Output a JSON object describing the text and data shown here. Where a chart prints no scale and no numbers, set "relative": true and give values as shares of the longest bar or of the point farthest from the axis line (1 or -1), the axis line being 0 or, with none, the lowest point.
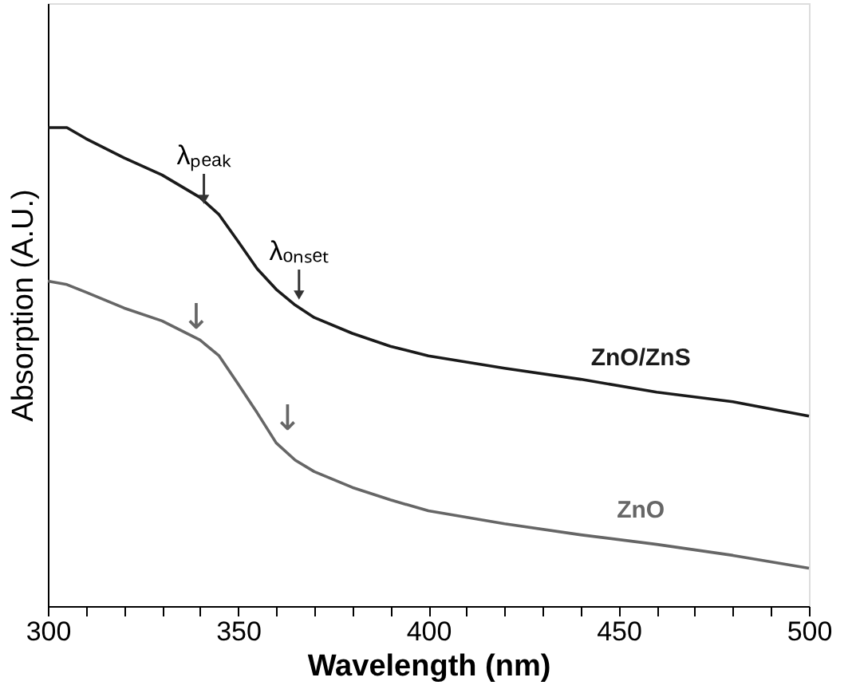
{
  "chart_data": {
    "type": "line",
    "relative": true,
    "xlabel": "Wavelength (nm)",
    "ylabel": "Absorption (A.U.)",
    "x": [
      300,
      305,
      310,
      320,
      330,
      340,
      345,
      350,
      355,
      360,
      365,
      370,
      380,
      390,
      400,
      420,
      440,
      460,
      480,
      500
    ],
    "xlim": [
      300,
      500
    ],
    "xticks": [
      300,
      {
        "value": 310,
        "label": null
      },
      {
        "value": 320,
        "label": null
      },
      {
        "value": 330,
        "label": null
      },
      {
        "value": 340,
        "label": null
      },
      350,
      {
        "value": 360,
        "label": null
      },
      {
        "value": 370,
        "label": null
      },
      {
        "value": 380,
        "label": null
      },
      {
        "value": 390,
        "label": null
      },
      400,
      {
        "value": 410,
        "label": null
      },
      {
        "value": 420,
        "label": null
      },
      {
        "value": 430,
        "label": null
      },
      {
        "value": 440,
        "label": null
      },
      450,
      {
        "value": 460,
        "label": null
      },
      {
        "value": 470,
        "label": null
      },
      {
        "value": 480,
        "label": null
      },
      {
        "value": 490,
        "label": null
      },
      500
    ],
    "series": [
      {
        "name": "ZnO/ZnS",
        "color": "#1a1a1a",
        "values": [
          1.0,
          1.0,
          0.977,
          0.937,
          0.901,
          0.854,
          0.818,
          0.762,
          0.705,
          0.662,
          0.629,
          0.603,
          0.57,
          0.543,
          0.523,
          0.497,
          0.474,
          0.447,
          0.427,
          0.397
        ]
      },
      {
        "name": "ZnO",
        "color": "#666666",
        "values": [
          0.679,
          0.672,
          0.656,
          0.623,
          0.596,
          0.556,
          0.523,
          0.464,
          0.404,
          0.341,
          0.305,
          0.281,
          0.248,
          0.222,
          0.199,
          0.172,
          0.149,
          0.129,
          0.106,
          0.079
        ]
      }
    ],
    "annotations": [
      {
        "text": "λₚₑₐₖ",
        "x": 341,
        "y": 0.83
      },
      {
        "text": "λₒₙₛₑₜ",
        "x": 366,
        "y": 0.63
      },
      {
        "text": "↓",
        "x": 339,
        "y": 0.536
      },
      {
        "text": "↓",
        "x": 363,
        "y": 0.325
      }
    ],
    "grid": false,
    "legend": false,
    "marker": "none",
    "line_style": "solid"
  }
}
